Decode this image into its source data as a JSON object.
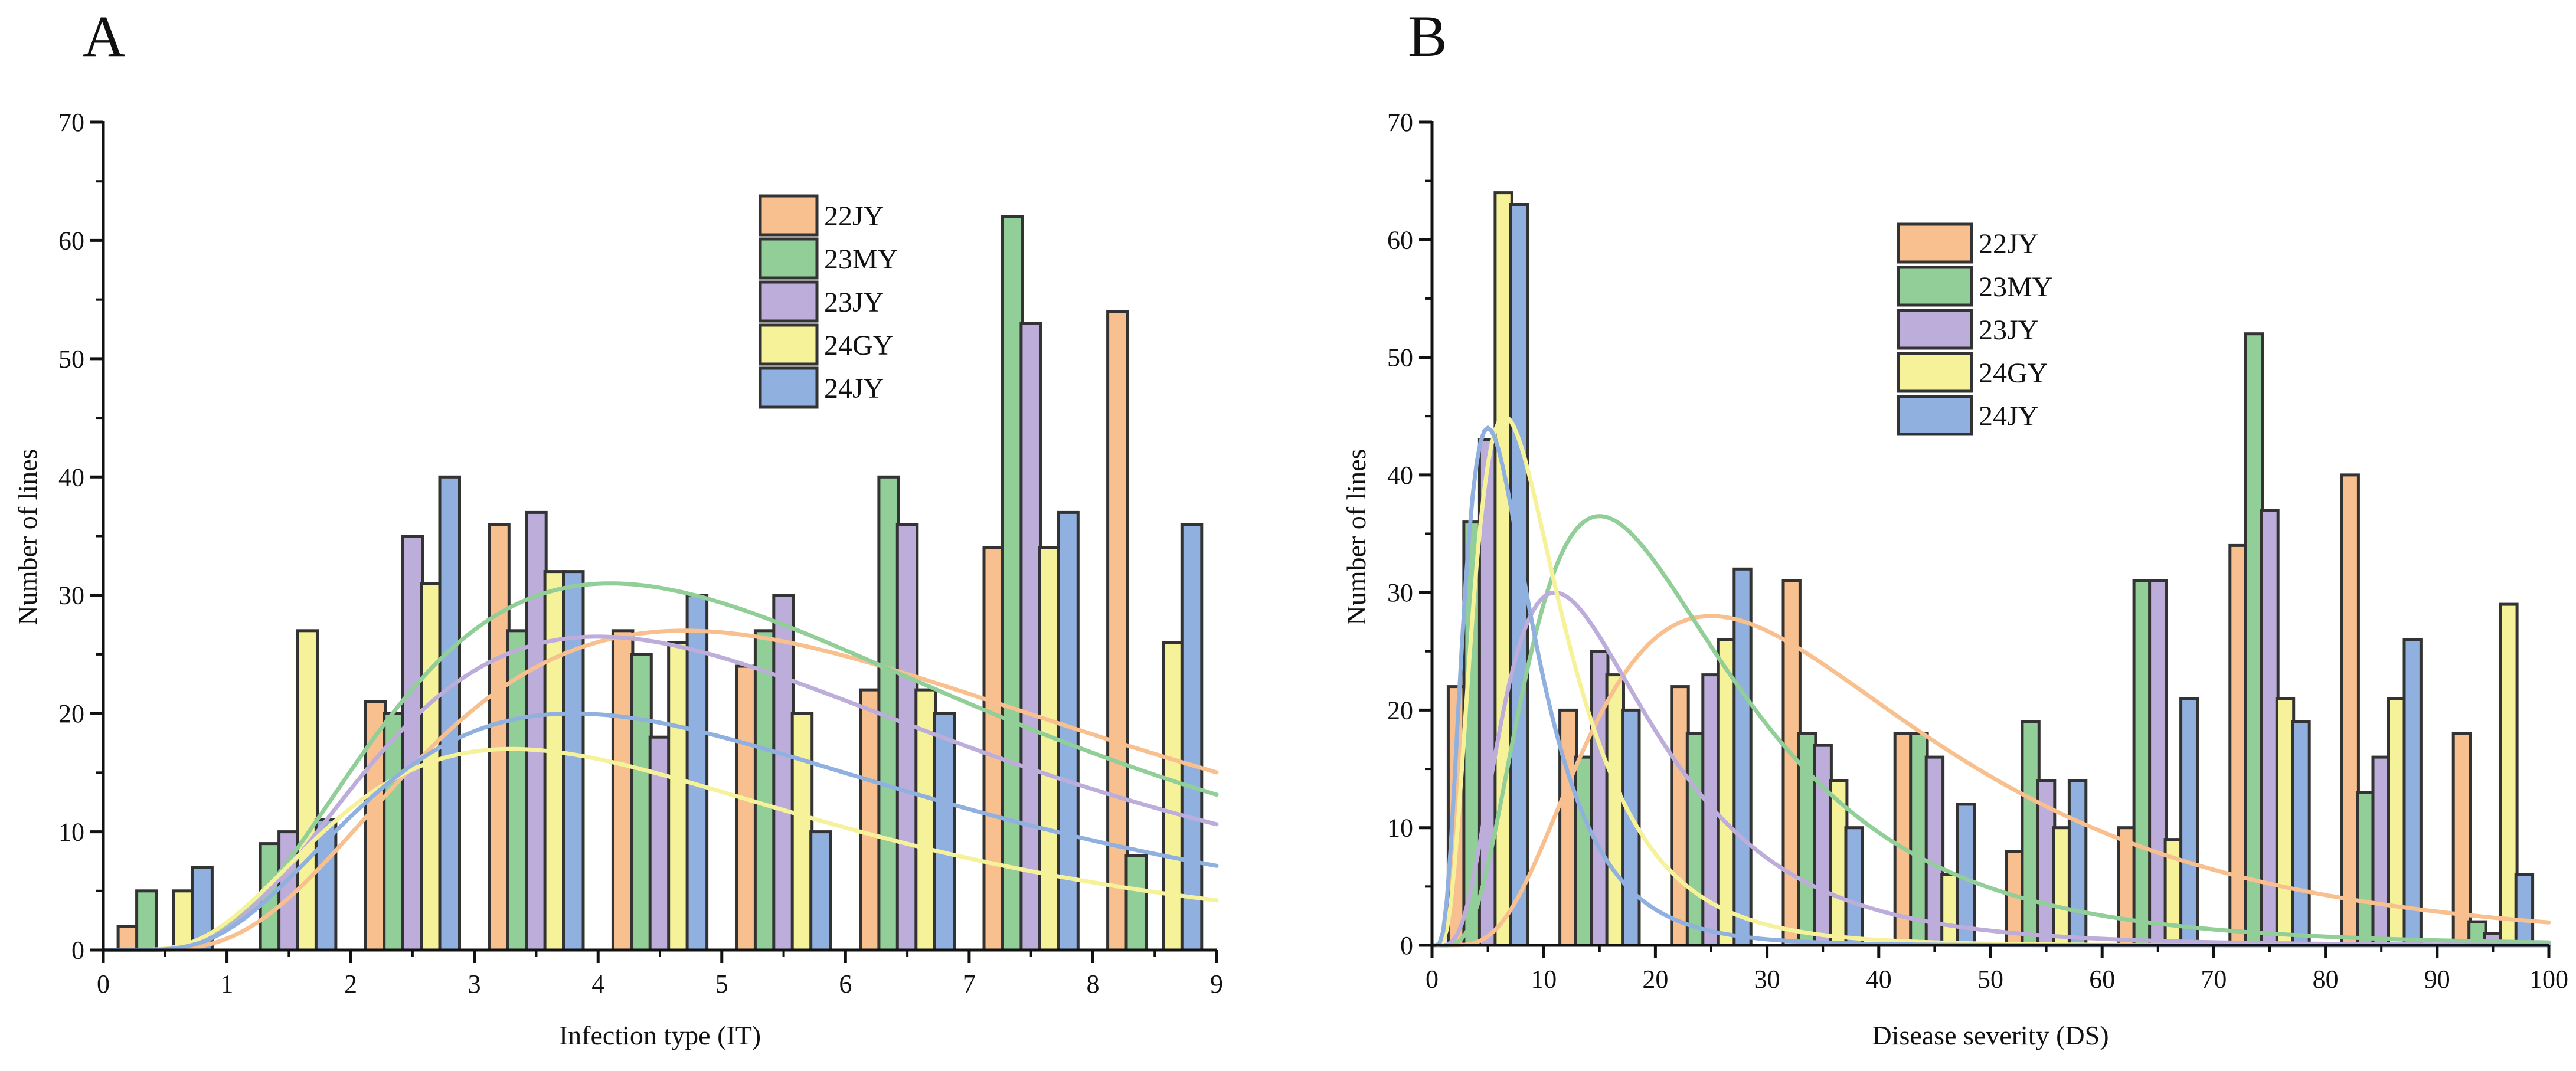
{
  "chart_data": [
    {
      "panel": "A",
      "type": "bar",
      "xlabel": "Infection type (IT)",
      "ylabel": "Number of lines",
      "xlim": [
        0,
        9
      ],
      "ylim": [
        0,
        70
      ],
      "xticks": [
        0,
        1,
        2,
        3,
        4,
        5,
        6,
        7,
        8,
        9
      ],
      "yticks": [
        0,
        10,
        20,
        30,
        40,
        50,
        60,
        70
      ],
      "bar_width": 0.16,
      "legend": [
        "22JY",
        "23MY",
        "23JY",
        "24GY",
        "24JY"
      ],
      "legend_position": "top-right",
      "series": [
        {
          "name": "22JY",
          "color": "#F8C08E",
          "x": [
            0.2,
            2.2,
            3.2,
            4.2,
            5.2,
            6.2,
            7.2,
            8.2
          ],
          "values": [
            2,
            21,
            36,
            27,
            24,
            22,
            34,
            54
          ],
          "curve": {
            "model": "lognormal",
            "peak_x": 4.7,
            "peak_y": 27
          }
        },
        {
          "name": "23MY",
          "color": "#92CE98",
          "x": [
            0.35,
            1.35,
            2.35,
            3.35,
            4.35,
            5.35,
            6.35,
            7.35,
            8.35
          ],
          "values": [
            5,
            9,
            20,
            27,
            25,
            27,
            40,
            62,
            8
          ],
          "curve": {
            "model": "lognormal",
            "peak_x": 4.1,
            "peak_y": 31
          }
        },
        {
          "name": "23JY",
          "color": "#BCADDA",
          "x": [
            1.5,
            2.5,
            3.5,
            4.5,
            5.5,
            6.5,
            7.5
          ],
          "values": [
            10,
            35,
            37,
            18,
            30,
            36,
            53
          ],
          "curve": {
            "model": "lognormal",
            "peak_x": 4.0,
            "peak_y": 26.5
          }
        },
        {
          "name": "24GY",
          "color": "#F5F29A",
          "x": [
            0.65,
            1.65,
            2.65,
            3.65,
            4.65,
            5.65,
            6.65,
            7.65,
            8.65
          ],
          "values": [
            5,
            27,
            31,
            32,
            26,
            20,
            22,
            34,
            26
          ],
          "curve": {
            "model": "lognormal",
            "peak_x": 3.3,
            "peak_y": 17
          }
        },
        {
          "name": "24JY",
          "color": "#90B0DF",
          "x": [
            0.8,
            1.8,
            2.8,
            3.8,
            4.8,
            5.8,
            6.8,
            7.8,
            8.8
          ],
          "values": [
            7,
            11,
            40,
            32,
            30,
            10,
            20,
            37,
            36
          ],
          "curve": {
            "model": "lognormal",
            "peak_x": 3.8,
            "peak_y": 20
          }
        }
      ]
    },
    {
      "panel": "B",
      "type": "bar",
      "xlabel": "Disease severity (DS)",
      "ylabel": "Number of lines",
      "xlim": [
        0,
        100
      ],
      "ylim": [
        0,
        70
      ],
      "xticks": [
        0,
        10,
        20,
        30,
        40,
        50,
        60,
        70,
        80,
        90,
        100
      ],
      "yticks": [
        0,
        10,
        20,
        30,
        40,
        50,
        60,
        70
      ],
      "bar_width": 1.5,
      "legend": [
        "22JY",
        "23MY",
        "23JY",
        "24GY",
        "24JY"
      ],
      "legend_position": "top-center",
      "series": [
        {
          "name": "22JY",
          "color": "#F8C08E",
          "x": [
            2.2,
            12.2,
            22.2,
            32.2,
            42.2,
            52.2,
            62.2,
            72.2,
            82.2,
            92.2
          ],
          "values": [
            22,
            20,
            22,
            31,
            18,
            8,
            10,
            34,
            40,
            18
          ],
          "curve": {
            "model": "lognormal",
            "peak_x": 25,
            "peak_y": 28
          }
        },
        {
          "name": "23MY",
          "color": "#92CE98",
          "x": [
            3.6,
            13.6,
            23.6,
            33.6,
            43.6,
            53.6,
            63.6,
            73.6,
            83.6,
            93.6
          ],
          "values": [
            36,
            16,
            18,
            18,
            18,
            19,
            31,
            52,
            13,
            2
          ],
          "curve": {
            "model": "lognormal",
            "peak_x": 15,
            "peak_y": 36.5
          }
        },
        {
          "name": "23JY",
          "color": "#BCADDA",
          "x": [
            5.0,
            15.0,
            25.0,
            35.0,
            45.0,
            55.0,
            65.0,
            75.0,
            85.0,
            95.0
          ],
          "values": [
            43,
            25,
            23,
            17,
            16,
            14,
            31,
            37,
            16,
            1
          ],
          "curve": {
            "model": "lognormal",
            "peak_x": 11,
            "peak_y": 30
          }
        },
        {
          "name": "24GY",
          "color": "#F5F29A",
          "x": [
            6.4,
            16.4,
            26.4,
            36.4,
            46.4,
            56.4,
            66.4,
            76.4,
            86.4,
            96.4
          ],
          "values": [
            64,
            23,
            26,
            14,
            6,
            10,
            9,
            21,
            21,
            29
          ],
          "curve": {
            "model": "lognormal",
            "peak_x": 6.5,
            "peak_y": 45
          }
        },
        {
          "name": "24JY",
          "color": "#90B0DF",
          "x": [
            7.8,
            17.8,
            27.8,
            37.8,
            47.8,
            57.8,
            67.8,
            77.8,
            87.8,
            97.8
          ],
          "values": [
            63,
            20,
            32,
            10,
            12,
            14,
            21,
            19,
            26,
            6
          ],
          "curve": {
            "model": "lognormal",
            "peak_x": 5,
            "peak_y": 44
          }
        }
      ]
    }
  ]
}
